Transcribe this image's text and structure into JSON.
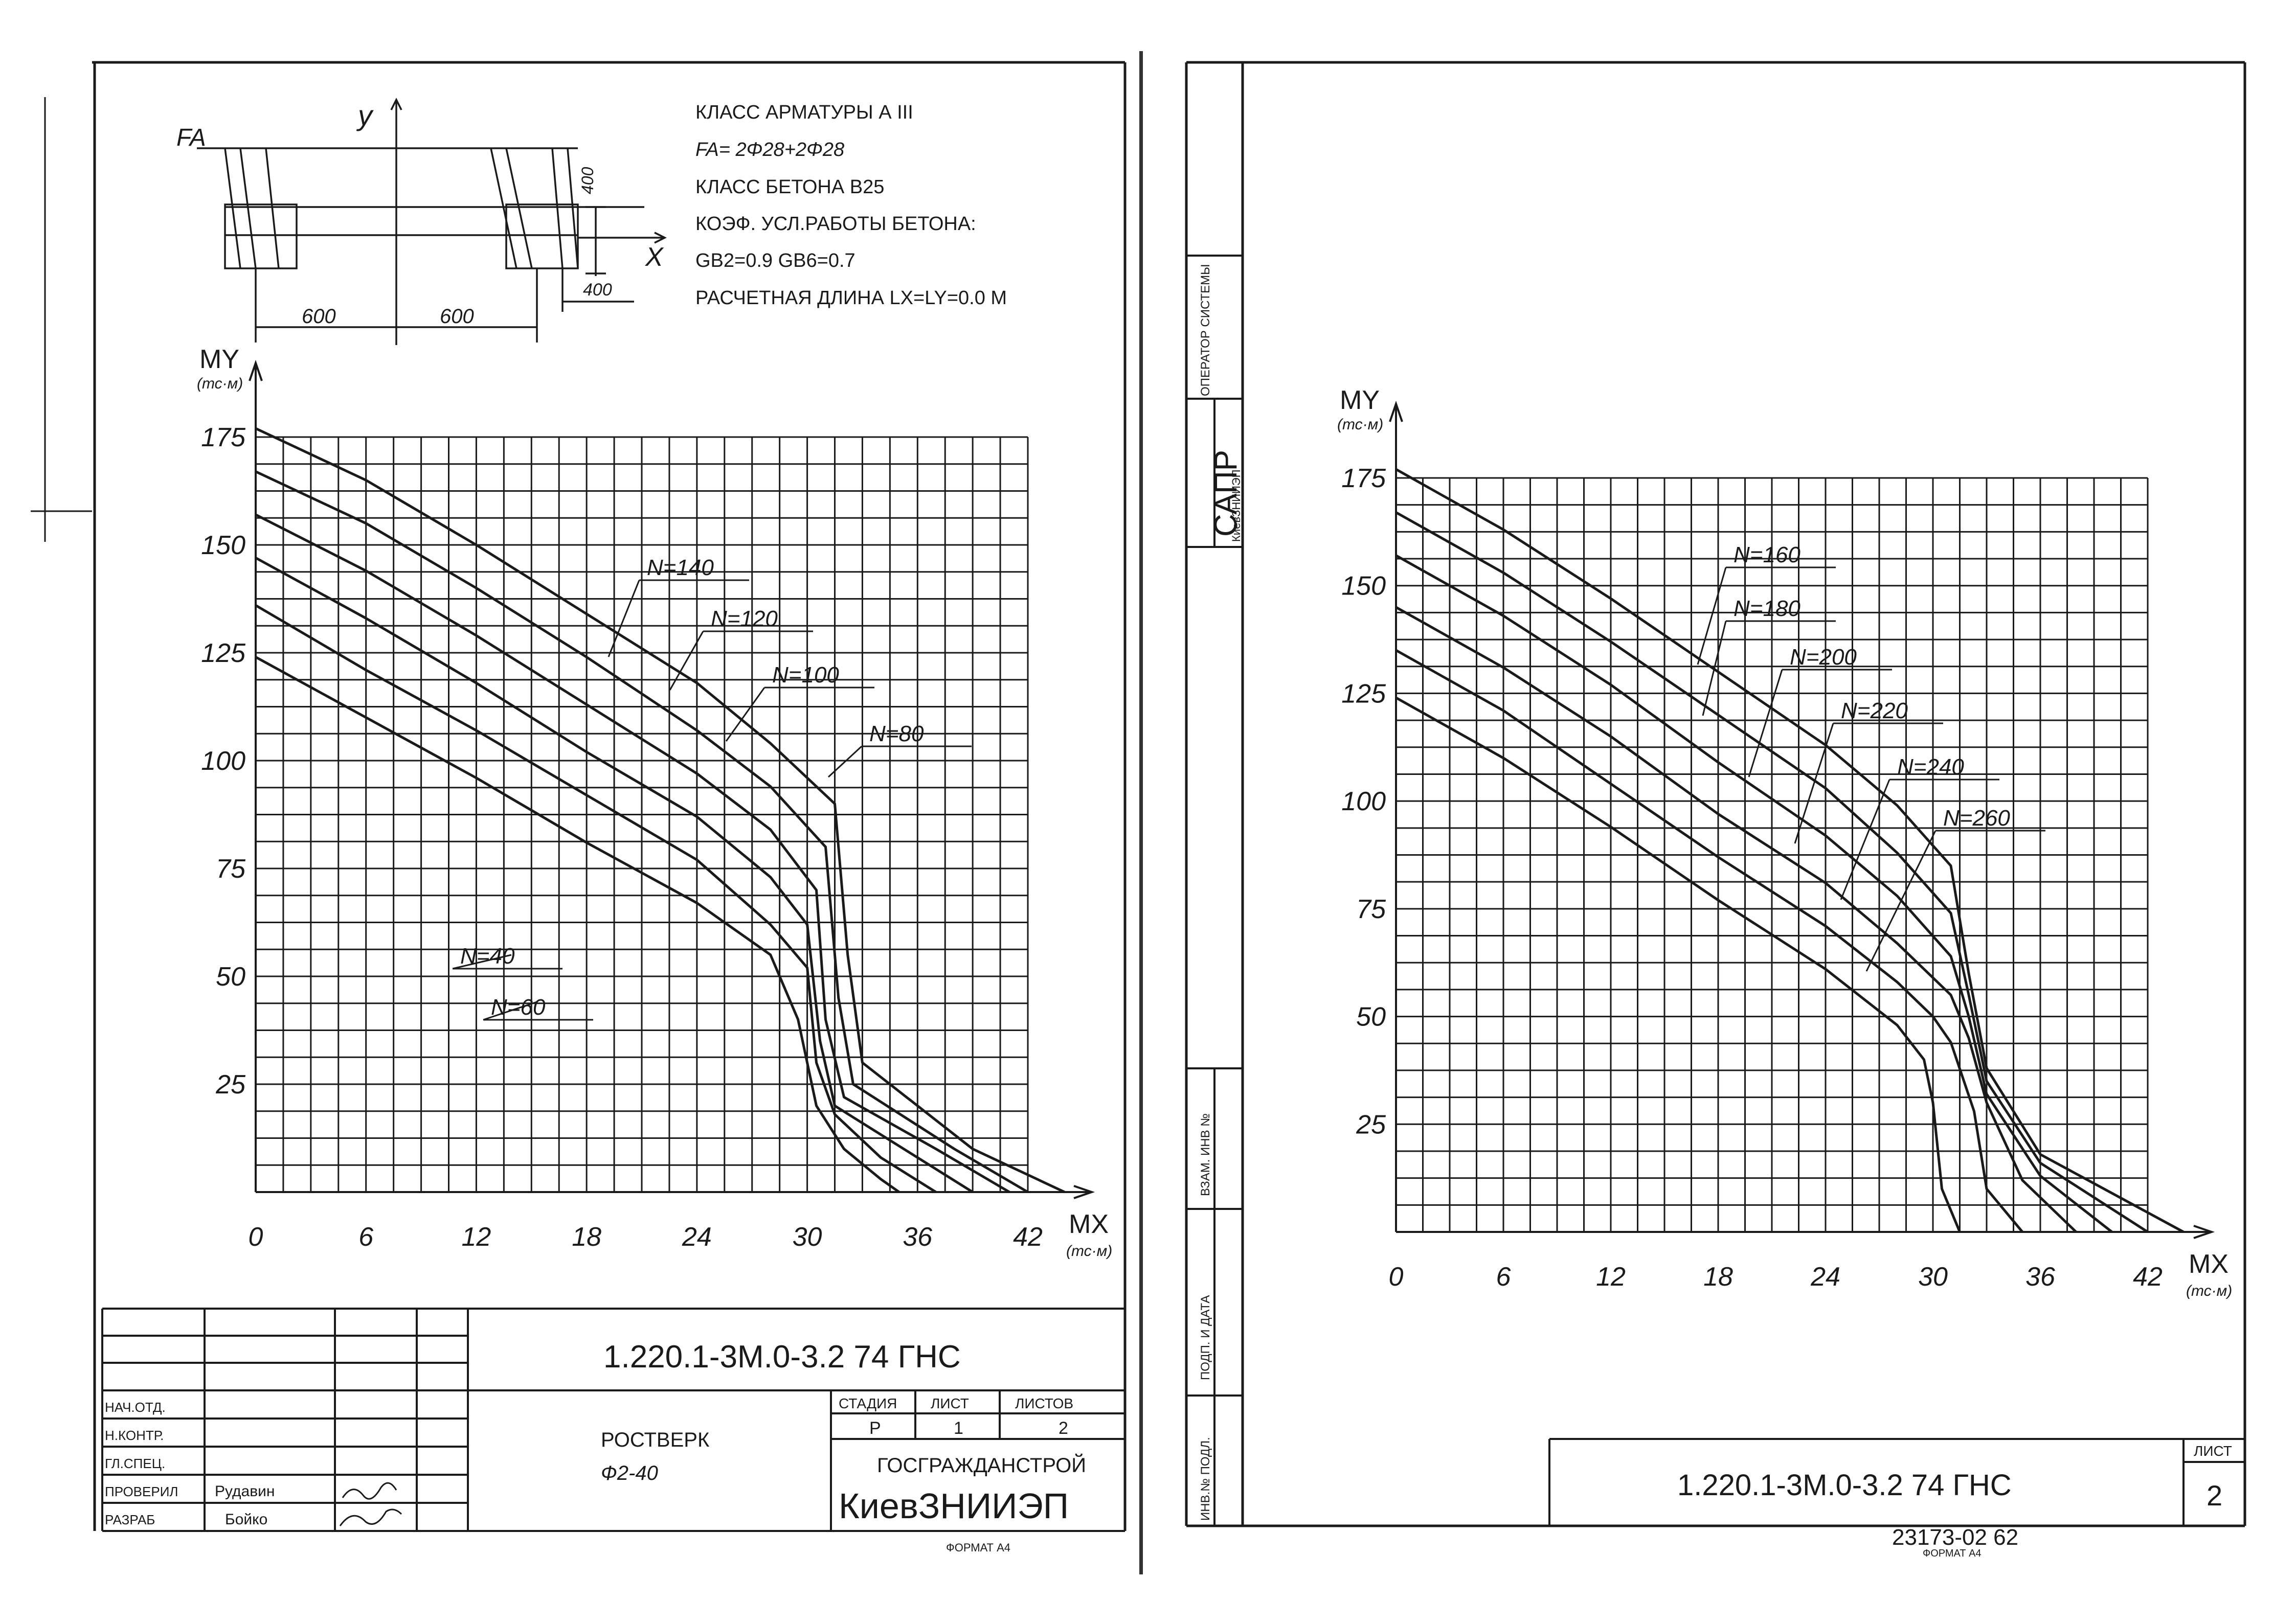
{
  "sheet_left": {
    "section": {
      "fa_label": "FA",
      "y_axis": "y",
      "x_axis": "X",
      "dim_h1": "600",
      "dim_h2": "600",
      "dim_v1": "400",
      "dim_v2": "400"
    },
    "specs": [
      "КЛАСС АРМАТУРЫ       А III",
      "FA= 2Φ28+2Φ28",
      "КЛАСС БЕТОНА      В25",
      "КОЭФ. УСЛ.РАБОТЫ БЕТОНА:",
      "GB2=0.9      GB6=0.7",
      "РАСЧЕТНАЯ ДЛИНА     LX=LY=0.0  M"
    ],
    "title_block": {
      "code": "1.220.1-3М.0-3.2  74 ГНС",
      "roles": [
        "НАЧ.ОТД.",
        "Н.КОНТР.",
        "ГЛ.СПЕЦ.",
        "ПРОВЕРИЛ",
        "РАЗРАБ"
      ],
      "names": [
        "",
        "",
        "",
        "Рудавин",
        "Бойко"
      ],
      "item_name": "РОСТВЕРК",
      "item_mark": "Ф2-40",
      "stage_hdr": "СТАДИЯ",
      "sheet_hdr": "ЛИСТ",
      "sheets_hdr": "ЛИСТОВ",
      "stage": "Р",
      "sheet": "1",
      "sheets": "2",
      "org1": "ГОСГРАЖДАНСТРОЙ",
      "org2": "КиевЗНИИЭП"
    },
    "format": "ФОРМАТ А4"
  },
  "sheet_right": {
    "side_stamp": {
      "operator": "ОПЕРАТОР СИСТЕМЫ",
      "sapr": "САПР",
      "sapr_sub": "КиевЗНИИЭП",
      "vzam": "ВЗАМ. ИНВ №",
      "podp": "ПОДП. И ДАТА",
      "inv": "ИНВ.№ ПОДЛ."
    },
    "title_block": {
      "code": "1.220.1-3М.0-3.2  74 ГНС",
      "sheet_hdr": "ЛИСТ",
      "sheet": "2"
    },
    "archive_no": "23173-02  62",
    "format": "ФОРМАТ А4"
  },
  "chart_data": [
    {
      "type": "line",
      "xlabel": "MX",
      "xunit": "(тс·м)",
      "ylabel": "MY",
      "yunit": "(тс·м)",
      "xlim": [
        0,
        42
      ],
      "ylim": [
        0,
        175
      ],
      "xticks": [
        "0",
        "6",
        "12",
        "18",
        "24",
        "30",
        "36",
        "42"
      ],
      "yticks": [
        "25",
        "50",
        "75",
        "100",
        "125",
        "150",
        "175"
      ],
      "grid": true,
      "series": [
        {
          "name": "N=40",
          "points": [
            [
              0,
              124
            ],
            [
              6,
              110
            ],
            [
              12,
              96
            ],
            [
              18,
              81
            ],
            [
              24,
              67
            ],
            [
              28,
              55
            ],
            [
              29.5,
              40
            ],
            [
              30.5,
              20
            ],
            [
              32,
              10
            ],
            [
              34,
              3
            ],
            [
              35,
              0
            ]
          ]
        },
        {
          "name": "N=60",
          "points": [
            [
              0,
              136
            ],
            [
              6,
              121
            ],
            [
              12,
              107
            ],
            [
              18,
              92
            ],
            [
              24,
              77
            ],
            [
              28,
              62
            ],
            [
              30,
              52
            ],
            [
              30.5,
              30
            ],
            [
              31.5,
              18
            ],
            [
              34,
              8
            ],
            [
              37,
              0
            ]
          ]
        },
        {
          "name": "N=80",
          "points": [
            [
              0,
              147
            ],
            [
              6,
              133
            ],
            [
              12,
              118
            ],
            [
              18,
              102
            ],
            [
              24,
              87
            ],
            [
              28,
              73
            ],
            [
              30,
              62
            ],
            [
              30.7,
              35
            ],
            [
              31.5,
              20
            ],
            [
              36,
              8
            ],
            [
              39,
              0
            ]
          ]
        },
        {
          "name": "N=100",
          "points": [
            [
              0,
              157
            ],
            [
              6,
              144
            ],
            [
              12,
              129
            ],
            [
              18,
              113
            ],
            [
              24,
              97
            ],
            [
              28,
              84
            ],
            [
              30.5,
              70
            ],
            [
              31,
              40
            ],
            [
              32,
              22
            ],
            [
              37,
              10
            ],
            [
              41,
              0
            ]
          ]
        },
        {
          "name": "N=120",
          "points": [
            [
              0,
              167
            ],
            [
              6,
              155
            ],
            [
              12,
              140
            ],
            [
              18,
              124
            ],
            [
              24,
              107
            ],
            [
              28,
              94
            ],
            [
              31,
              80
            ],
            [
              31.7,
              45
            ],
            [
              32.5,
              25
            ],
            [
              38,
              10
            ],
            [
              42,
              0
            ]
          ]
        },
        {
          "name": "N=140",
          "points": [
            [
              0,
              177
            ],
            [
              6,
              165
            ],
            [
              12,
              150
            ],
            [
              18,
              134
            ],
            [
              24,
              118
            ],
            [
              28,
              104
            ],
            [
              31.5,
              90
            ],
            [
              32.2,
              55
            ],
            [
              33,
              30
            ],
            [
              39,
              10
            ],
            [
              44,
              0
            ]
          ]
        }
      ],
      "annotations": [
        "N=140",
        "N=120",
        "N=100",
        "N=80",
        "N=40",
        "N=60"
      ]
    },
    {
      "type": "line",
      "xlabel": "MX",
      "xunit": "(тс·м)",
      "ylabel": "MY",
      "yunit": "(тс·м)",
      "xlim": [
        0,
        42
      ],
      "ylim": [
        0,
        175
      ],
      "xticks": [
        "0",
        "6",
        "12",
        "18",
        "24",
        "30",
        "36",
        "42"
      ],
      "yticks": [
        "25",
        "50",
        "75",
        "100",
        "125",
        "150",
        "175"
      ],
      "grid": true,
      "series": [
        {
          "name": "N=160",
          "points": [
            [
              0,
              177
            ],
            [
              6,
              163
            ],
            [
              12,
              147
            ],
            [
              18,
              130
            ],
            [
              24,
              113
            ],
            [
              28,
              99
            ],
            [
              31,
              85
            ],
            [
              32,
              60
            ],
            [
              33,
              38
            ],
            [
              36,
              18
            ],
            [
              44,
              0
            ]
          ]
        },
        {
          "name": "N=180",
          "points": [
            [
              0,
              167
            ],
            [
              6,
              153
            ],
            [
              12,
              137
            ],
            [
              18,
              120
            ],
            [
              24,
              103
            ],
            [
              28,
              88
            ],
            [
              31,
              74
            ],
            [
              32,
              55
            ],
            [
              33,
              35
            ],
            [
              36,
              16
            ],
            [
              42,
              0
            ]
          ]
        },
        {
          "name": "N=200",
          "points": [
            [
              0,
              157
            ],
            [
              6,
              143
            ],
            [
              12,
              127
            ],
            [
              18,
              109
            ],
            [
              24,
              92
            ],
            [
              28,
              78
            ],
            [
              31,
              64
            ],
            [
              32,
              50
            ],
            [
              33,
              32
            ],
            [
              36,
              13
            ],
            [
              40,
              0
            ]
          ]
        },
        {
          "name": "N=220",
          "points": [
            [
              0,
              145
            ],
            [
              6,
              131
            ],
            [
              12,
              115
            ],
            [
              18,
              97
            ],
            [
              24,
              81
            ],
            [
              28,
              67
            ],
            [
              31,
              55
            ],
            [
              32,
              45
            ],
            [
              33,
              30
            ],
            [
              35,
              12
            ],
            [
              38,
              0
            ]
          ]
        },
        {
          "name": "N=240",
          "points": [
            [
              0,
              135
            ],
            [
              6,
              121
            ],
            [
              12,
              104
            ],
            [
              18,
              87
            ],
            [
              24,
              71
            ],
            [
              28,
              58
            ],
            [
              30,
              50
            ],
            [
              31,
              44
            ],
            [
              32.3,
              28
            ],
            [
              33,
              10
            ],
            [
              35,
              0
            ]
          ]
        },
        {
          "name": "N=260",
          "points": [
            [
              0,
              124
            ],
            [
              6,
              110
            ],
            [
              12,
              94
            ],
            [
              18,
              77
            ],
            [
              24,
              61
            ],
            [
              28,
              48
            ],
            [
              29.5,
              40
            ],
            [
              30,
              30
            ],
            [
              30.5,
              10
            ],
            [
              31.5,
              0
            ]
          ]
        }
      ],
      "annotations": [
        "N=160",
        "N=180",
        "N=200",
        "N=220",
        "N=240",
        "N=260"
      ]
    }
  ]
}
